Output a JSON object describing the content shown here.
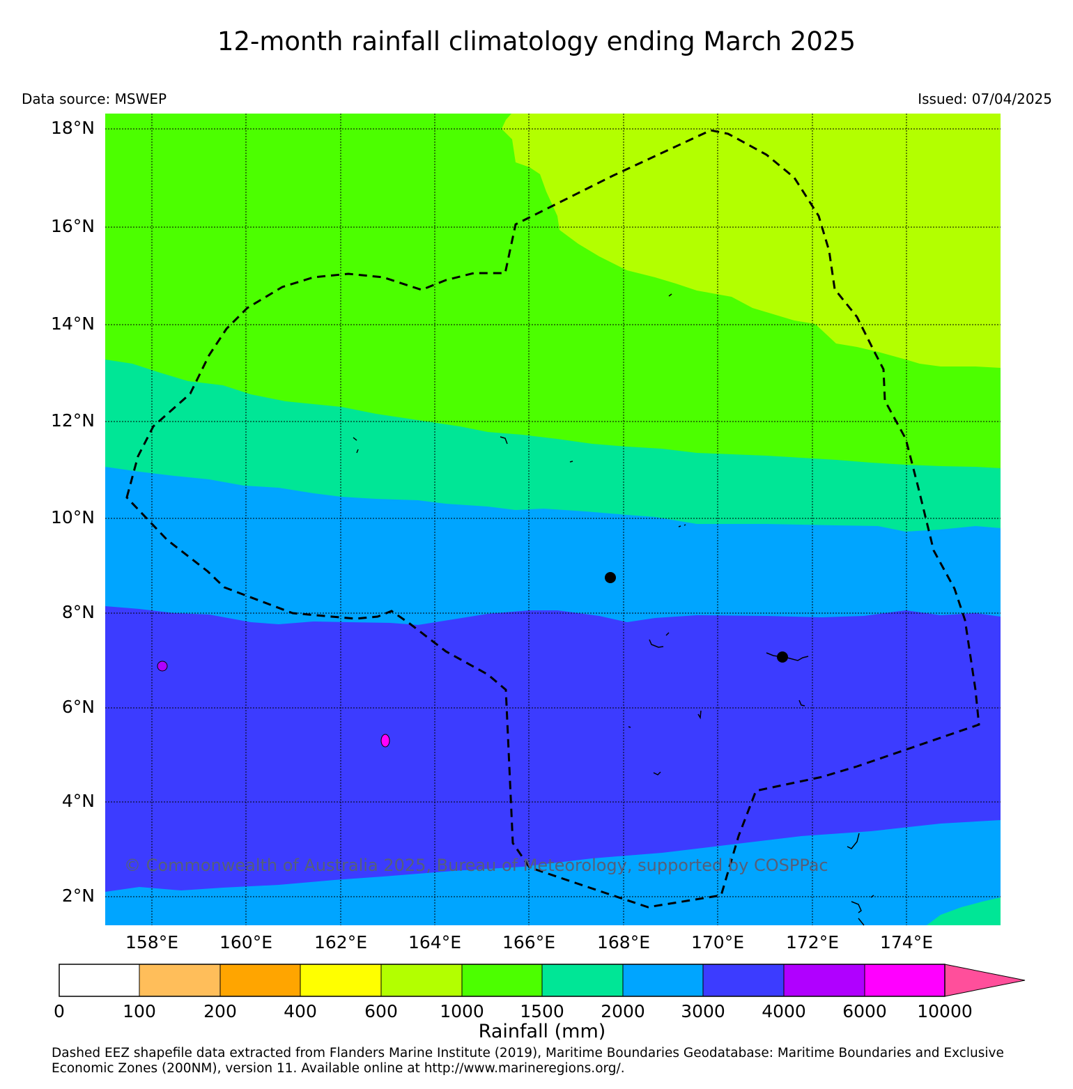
{
  "title": "12-month rainfall climatology ending March 2025",
  "data_source": "Data source: MSWEP",
  "issued": "Issued: 07/04/2025",
  "copyright": "© Commonwealth of Australia 2025, Bureau of Meteorology, supported by COSPPac",
  "map": {
    "lon_range": [
      157,
      176
    ],
    "lat_range": [
      1.4,
      18.3
    ],
    "lat_labels": [
      "2°N",
      "4°N",
      "6°N",
      "8°N",
      "10°N",
      "12°N",
      "14°N",
      "16°N",
      "18°N"
    ],
    "lon_labels": [
      "158°E",
      "160°E",
      "162°E",
      "164°E",
      "166°E",
      "168°E",
      "170°E",
      "172°E",
      "174°E"
    ],
    "grid": "dotted",
    "stations": [
      {
        "lon": 167.73,
        "lat": 8.72
      },
      {
        "lon": 171.38,
        "lat": 7.09
      }
    ],
    "colors": {
      "band_600_1000": "#b3ff00",
      "band_1000_1500": "#4cff00",
      "band_1500_2000": "#00e696",
      "band_2000_3000": "#00a5ff",
      "band_3000_4000": "#3c3cff",
      "band_4000_6000": "#b000ff",
      "band_6000_10000": "#ff00ff"
    }
  },
  "colorbar": {
    "title": "Rainfall (mm)",
    "labels": [
      "0",
      "100",
      "200",
      "400",
      "600",
      "1000",
      "1500",
      "2000",
      "3000",
      "4000",
      "6000",
      "10000"
    ],
    "colors": [
      "#ffffff",
      "#ffbe5a",
      "#ffa500",
      "#ffff00",
      "#b3ff00",
      "#4cff00",
      "#00e696",
      "#00a5ff",
      "#3c3cff",
      "#b000ff",
      "#ff00ff"
    ],
    "extend_color": "#ff4f9b"
  },
  "footer": "Dashed EEZ shapefile data extracted from Flanders Marine Institute (2019), Maritime Boundaries Geodatabase: Maritime Boundaries and Exclusive Economic Zones (200NM), version 11. Available online at http://www.marineregions.org/."
}
